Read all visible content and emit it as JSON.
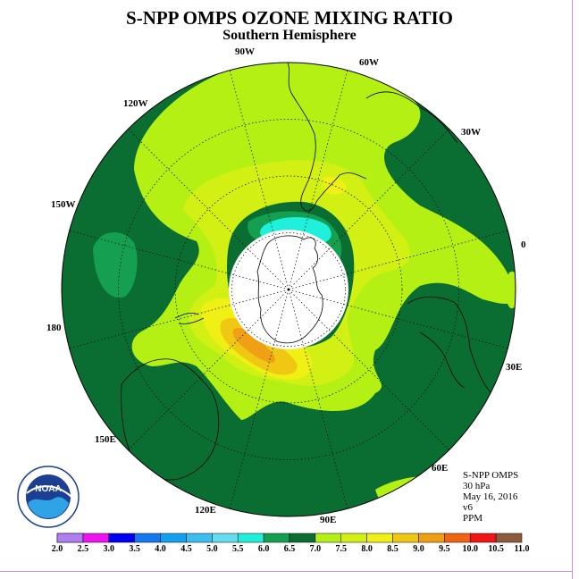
{
  "title": "S-NPP OMPS OZONE MIXING RATIO",
  "subtitle": "Southern Hemisphere",
  "longitude_labels": [
    "90W",
    "60W",
    "30W",
    "0",
    "30E",
    "60E",
    "90E",
    "120E",
    "150E",
    "180",
    "150W",
    "120W"
  ],
  "info": {
    "instrument": "S-NPP OMPS",
    "level": "30 hPa",
    "date": "May 16, 2016",
    "version": "v6",
    "units": "PPM"
  },
  "colorbar": {
    "ticks": [
      "2.0",
      "2.5",
      "3.0",
      "3.5",
      "4.0",
      "4.5",
      "5.0",
      "5.5",
      "6.0",
      "6.5",
      "7.0",
      "7.5",
      "8.0",
      "8.5",
      "9.0",
      "9.5",
      "10.0",
      "10.5",
      "11.0"
    ],
    "colors": [
      "#b07ef0",
      "#dcb4f0",
      "#f014f0",
      "#0000f0",
      "#1478f0",
      "#14a0f0",
      "#3cbef0",
      "#64dcf0",
      "#1ef0dc",
      "#14a050",
      "#0a6e32",
      "#b4f014",
      "#d2f014",
      "#f0f014",
      "#f0c814",
      "#f0a014",
      "#f06414",
      "#f01414",
      "#8c5a3c"
    ]
  },
  "logo": {
    "text": "NOAA",
    "ring_text": "NATIONAL OCEANIC AND ATMOSPHERIC ADMINISTRATION U.S. DEPARTMENT OF COMMERCE"
  },
  "map_colors": {
    "v6_5": "#14a050",
    "v7_0": "#0a6e32",
    "v7_5": "#b4f014",
    "v8_0": "#d2f014",
    "v8_5": "#f0f014",
    "v9_0": "#f0c814",
    "v9_5": "#f0a014",
    "v6_0": "#1ef0dc",
    "no_data": "#ffffff"
  }
}
